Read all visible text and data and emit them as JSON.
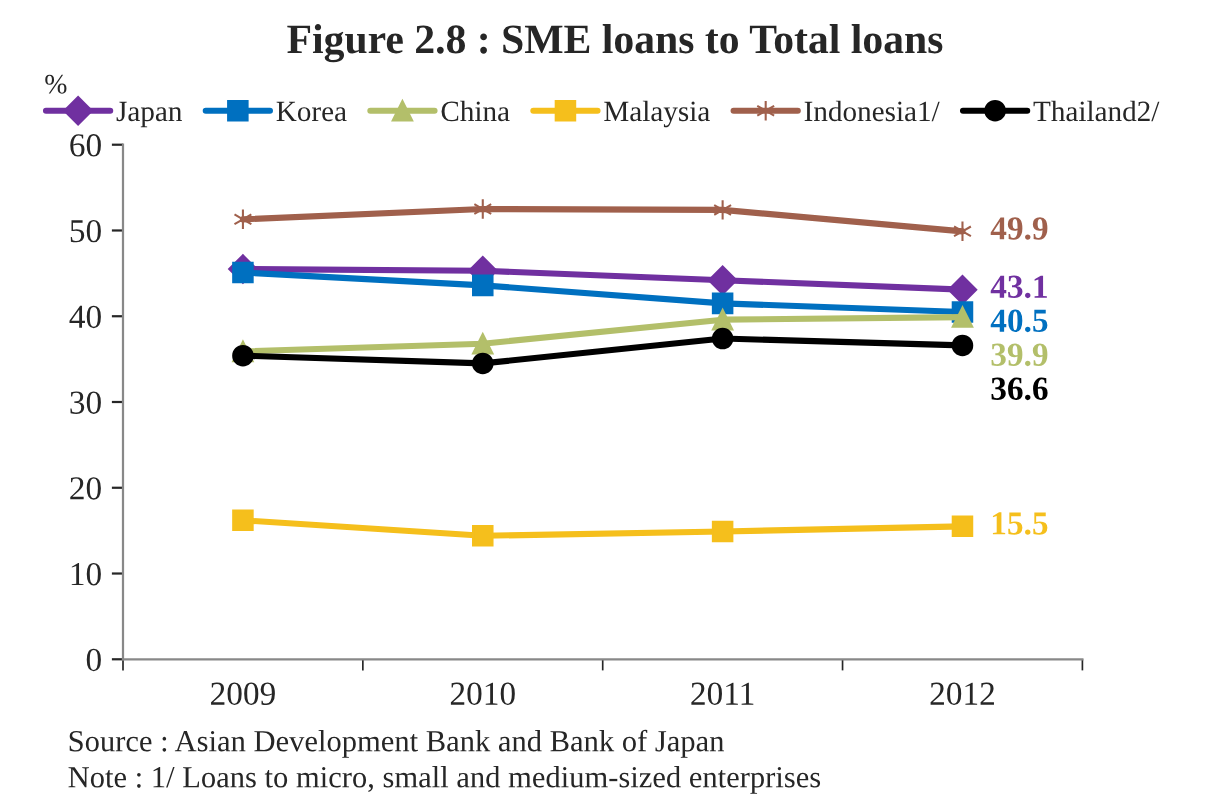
{
  "chart_data": {
    "type": "line",
    "title": "Figure 2.8 : SME loans to Total loans",
    "ylabel": "%",
    "categories": [
      "2009",
      "2010",
      "2011",
      "2012"
    ],
    "series": [
      {
        "name": "Japan",
        "color": "#7030a0",
        "marker": "diamond",
        "values": [
          45.5,
          45.3,
          44.2,
          43.1
        ],
        "value_labels": [
          null,
          null,
          null,
          "43.1"
        ]
      },
      {
        "name": "Korea",
        "color": "#0070c0",
        "marker": "square",
        "values": [
          45.1,
          43.6,
          41.5,
          40.5
        ],
        "value_labels": [
          null,
          null,
          null,
          "40.5"
        ]
      },
      {
        "name": "China",
        "color": "#b3bf6a",
        "marker": "triangle",
        "values": [
          35.9,
          36.8,
          39.6,
          39.9
        ],
        "value_labels": [
          null,
          null,
          null,
          "39.9"
        ]
      },
      {
        "name": "Malaysia",
        "color": "#f5bf1c",
        "marker": "square",
        "values": [
          16.2,
          14.4,
          14.9,
          15.5
        ],
        "value_labels": [
          null,
          null,
          null,
          "15.5"
        ]
      },
      {
        "name": "Indonesia1/",
        "color": "#a0604c",
        "marker": "cross",
        "values": [
          51.3,
          52.5,
          52.4,
          49.9
        ],
        "value_labels": [
          null,
          null,
          null,
          "49.9"
        ]
      },
      {
        "name": "Thailand2/",
        "color": "#000000",
        "marker": "circle",
        "values": [
          35.4,
          34.5,
          37.4,
          36.6
        ],
        "value_labels": [
          null,
          null,
          null,
          "36.6"
        ]
      }
    ],
    "ylim": [
      0,
      60
    ],
    "yticks": [
      0,
      10,
      20,
      30,
      40,
      50,
      60
    ],
    "grid": false,
    "legend": "top",
    "annotations": [
      "Source : Asian Development Bank and Bank of Japan",
      "Note : 1/ Loans to micro, small and medium-sized enterprises"
    ]
  }
}
